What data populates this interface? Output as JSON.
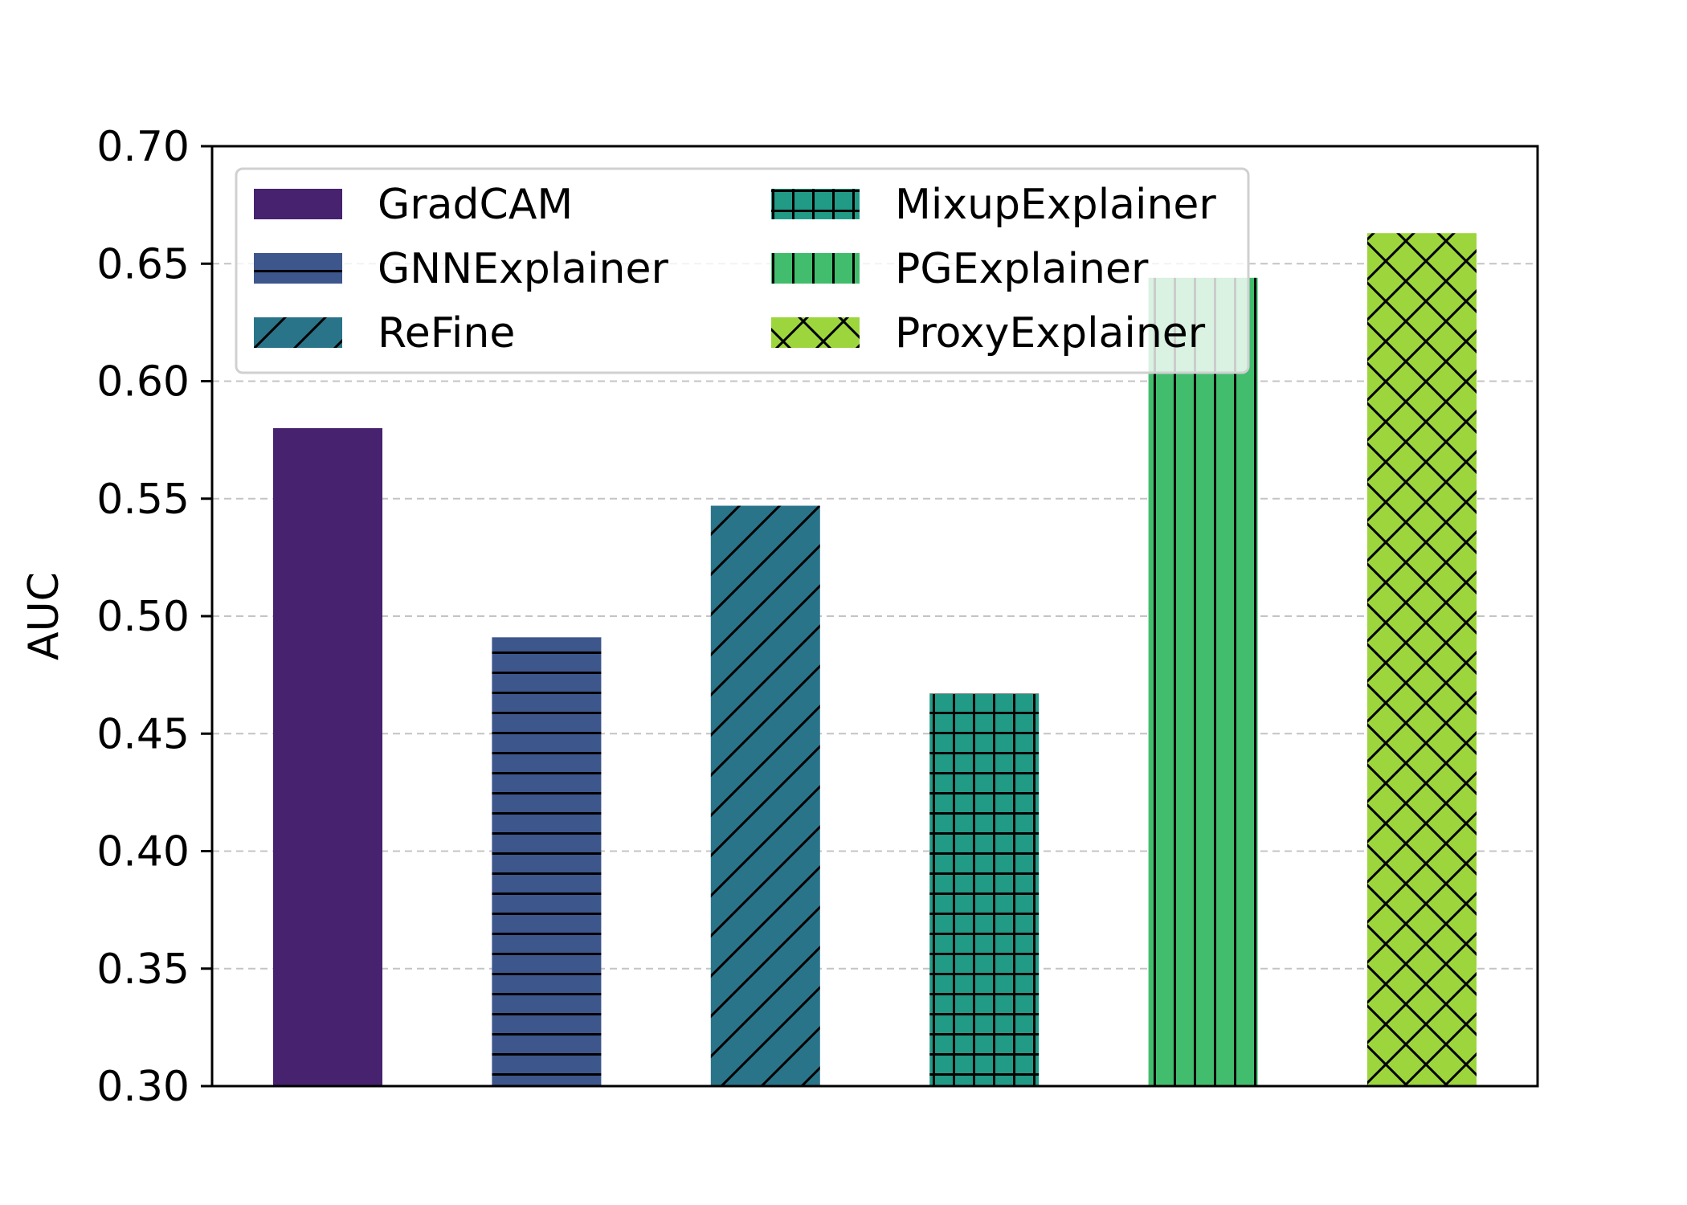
{
  "chart_data": {
    "type": "bar",
    "title": "",
    "xlabel": "",
    "ylabel": "AUC",
    "ylim": [
      0.3,
      0.7
    ],
    "yticks": [
      "0.30",
      "0.35",
      "0.40",
      "0.45",
      "0.50",
      "0.55",
      "0.60",
      "0.65",
      "0.70"
    ],
    "grid": "y-dashed",
    "legend_position": "upper-left",
    "legend_columns": 2,
    "series": [
      {
        "name": "GradCAM",
        "value": 0.58,
        "color": "#46226f",
        "hatch": "none"
      },
      {
        "name": "GNNExplainer",
        "value": 0.491,
        "color": "#3d568c",
        "hatch": "horizontal"
      },
      {
        "name": "ReFine",
        "value": 0.547,
        "color": "#2a748a",
        "hatch": "diagonal"
      },
      {
        "name": "MixupExplainer",
        "value": 0.467,
        "color": "#219a86",
        "hatch": "grid"
      },
      {
        "name": "PGExplainer",
        "value": 0.644,
        "color": "#42bd6d",
        "hatch": "vertical"
      },
      {
        "name": "ProxyExplainer",
        "value": 0.663,
        "color": "#9dd53d",
        "hatch": "crosshatch"
      }
    ]
  }
}
